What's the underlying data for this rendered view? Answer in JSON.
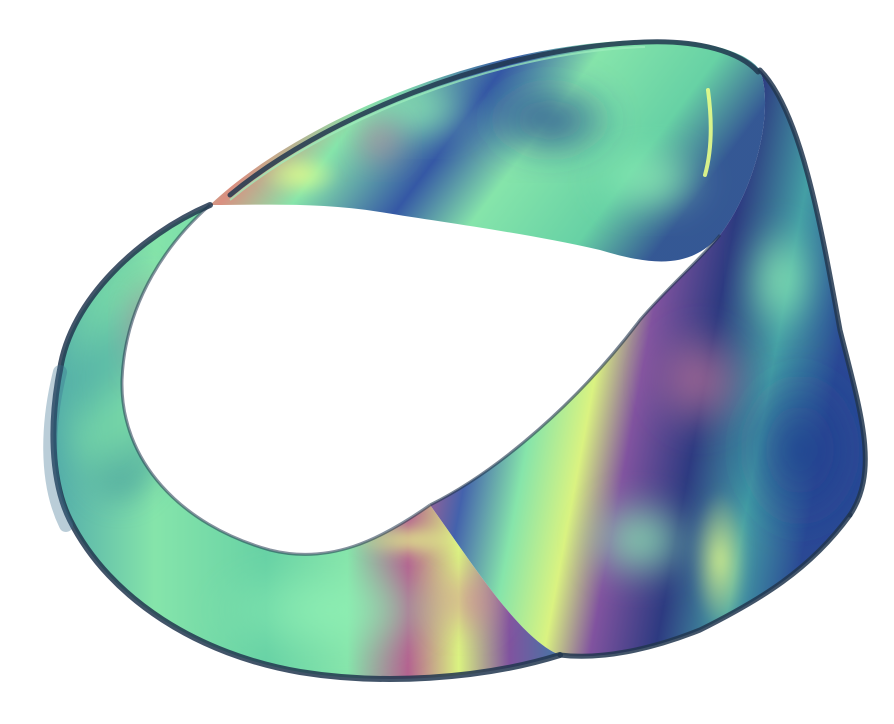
{
  "scene": {
    "subject": "mobius-strip",
    "background_color": "#ffffff",
    "palette": {
      "mint": "#7fe3a6",
      "seafoam": "#5fcfa0",
      "teal": "#3a9aa0",
      "navy": "#1f3f8f",
      "deep_blue": "#22307a",
      "violet": "#7a4a9a",
      "magenta": "#b05a8a",
      "salmon": "#d88a7a",
      "lime": "#d8f27a",
      "edge_dark": "#21364f"
    }
  }
}
